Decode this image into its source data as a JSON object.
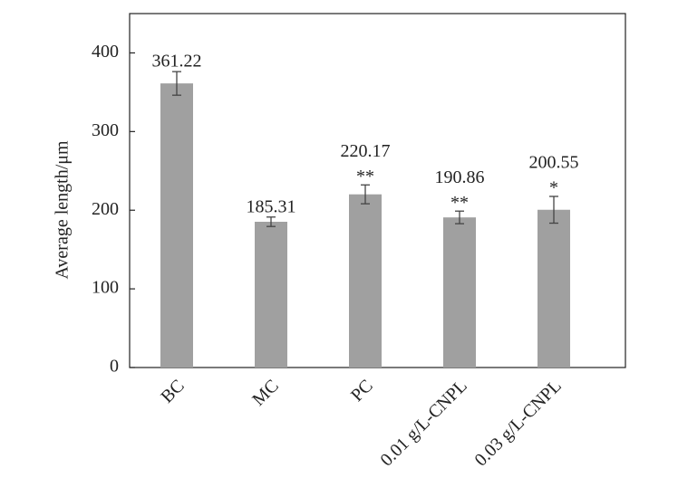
{
  "chart_data": {
    "type": "bar",
    "y_label": "Average length/μm",
    "categories": [
      "BC",
      "MC",
      "PC",
      "0.01 g/L-CNPL",
      "0.03 g/L-CNPL"
    ],
    "values": [
      361.22,
      185.31,
      220.17,
      190.86,
      200.55
    ],
    "errors": [
      15,
      6,
      12,
      8,
      17
    ],
    "significance": [
      null,
      null,
      "**",
      "**",
      "*"
    ],
    "color": "#a0a0a0",
    "error_color": "#444444",
    "ylim": [
      0,
      450
    ],
    "yticks": [
      0,
      100,
      200,
      300,
      400
    ],
    "grid": false
  }
}
